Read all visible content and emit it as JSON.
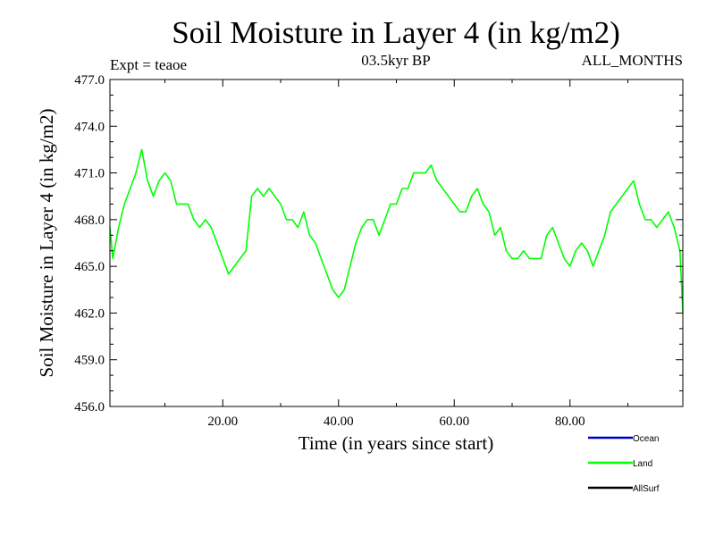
{
  "chart_data": {
    "type": "line",
    "title": "Soil Moisture in Layer 4 (in kg/m2)",
    "subtitle": "03.5kyr BP",
    "left_note": "Expt = teaoe",
    "right_note": "ALL_MONTHS",
    "xlabel": "Time (in years since start)",
    "ylabel": "Soil Moisture in Layer 4 (in kg/m2)",
    "xlim": [
      0.5,
      99.5
    ],
    "ylim": [
      456.0,
      477.0
    ],
    "xticks": [
      20,
      40,
      60,
      80
    ],
    "xtick_labels": [
      "20.00",
      "40.00",
      "60.00",
      "80.00"
    ],
    "yticks": [
      456,
      459,
      462,
      465,
      468,
      471,
      474,
      477
    ],
    "ytick_labels": [
      "456.0",
      "459.0",
      "462.0",
      "465.0",
      "468.0",
      "471.0",
      "474.0",
      "477.0"
    ],
    "legend": [
      {
        "name": "Ocean",
        "color": "#0000cc"
      },
      {
        "name": "Land",
        "color": "#00ff00"
      },
      {
        "name": "AllSurf",
        "color": "#000000"
      }
    ],
    "series": [
      {
        "name": "Land",
        "color": "#00ff00",
        "x": [
          0.5,
          1,
          2,
          3,
          4,
          5,
          6,
          7,
          8,
          9,
          10,
          11,
          12,
          13,
          14,
          15,
          16,
          17,
          18,
          19,
          20,
          21,
          22,
          23,
          24,
          25,
          26,
          27,
          28,
          29,
          30,
          31,
          32,
          33,
          34,
          35,
          36,
          37,
          38,
          39,
          40,
          41,
          42,
          43,
          44,
          45,
          46,
          47,
          48,
          49,
          50,
          51,
          52,
          53,
          54,
          55,
          56,
          57,
          58,
          59,
          60,
          61,
          62,
          63,
          64,
          65,
          66,
          67,
          68,
          69,
          70,
          71,
          72,
          73,
          74,
          75,
          76,
          77,
          78,
          79,
          80,
          81,
          82,
          83,
          84,
          85,
          86,
          87,
          88,
          89,
          90,
          91,
          92,
          93,
          94,
          95,
          96,
          97,
          98,
          99,
          99.5
        ],
        "y": [
          467.5,
          465.5,
          467.5,
          469.0,
          470.0,
          471.0,
          472.5,
          470.5,
          469.5,
          470.5,
          471.0,
          470.5,
          469.0,
          469.0,
          469.0,
          468.0,
          467.5,
          468.0,
          467.5,
          466.5,
          465.5,
          464.5,
          465.0,
          465.5,
          466.0,
          469.5,
          470.0,
          469.5,
          470.0,
          469.5,
          469.0,
          468.0,
          468.0,
          467.5,
          468.5,
          467.0,
          466.5,
          465.5,
          464.5,
          463.5,
          463.0,
          463.5,
          465.0,
          466.5,
          467.5,
          468.0,
          468.0,
          467.0,
          468.0,
          469.0,
          469.0,
          470.0,
          470.0,
          471.0,
          471.0,
          471.0,
          471.5,
          470.5,
          470.0,
          469.5,
          469.0,
          468.5,
          468.5,
          469.5,
          470.0,
          469.0,
          468.5,
          467.0,
          467.5,
          466.0,
          465.5,
          465.5,
          466.0,
          465.5,
          465.5,
          465.5,
          467.0,
          467.5,
          466.5,
          465.5,
          465.0,
          466.0,
          466.5,
          466.0,
          465.0,
          466.0,
          467.0,
          468.5,
          469.0,
          469.5,
          470.0,
          470.5,
          469.0,
          468.0,
          468.0,
          467.5,
          468.0,
          468.5,
          467.5,
          466.0,
          462.0
        ]
      },
      {
        "name": "Ocean",
        "color": "#0000cc",
        "x": [],
        "y": []
      },
      {
        "name": "AllSurf",
        "color": "#000000",
        "x": [],
        "y": []
      }
    ]
  }
}
